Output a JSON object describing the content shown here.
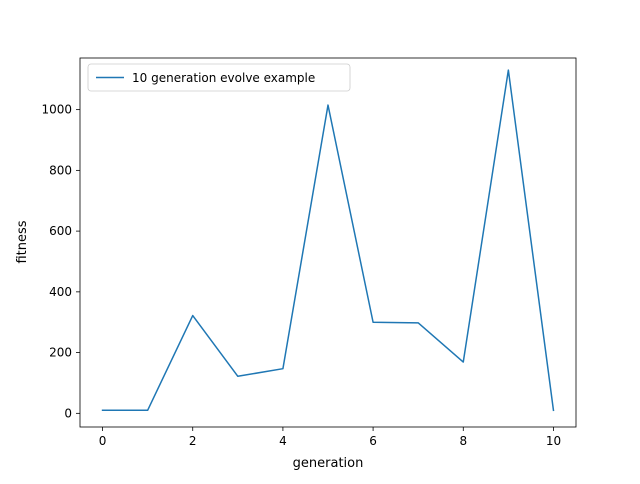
{
  "chart_data": {
    "type": "line",
    "title": "",
    "xlabel": "generation",
    "ylabel": "fitness",
    "xlim": [
      -0.5,
      10.5
    ],
    "ylim": [
      -45,
      1170
    ],
    "xticks": [
      0,
      2,
      4,
      6,
      8,
      10
    ],
    "yticks": [
      0,
      200,
      400,
      600,
      800,
      1000
    ],
    "grid": false,
    "legend_position": "top-left",
    "series": [
      {
        "name": "10 generation evolve example",
        "color": "#1f77b4",
        "x": [
          0,
          1,
          2,
          3,
          4,
          5,
          6,
          7,
          8,
          9,
          10
        ],
        "y": [
          10,
          10,
          322,
          122,
          147,
          1015,
          300,
          298,
          169,
          1130,
          10
        ]
      }
    ]
  }
}
